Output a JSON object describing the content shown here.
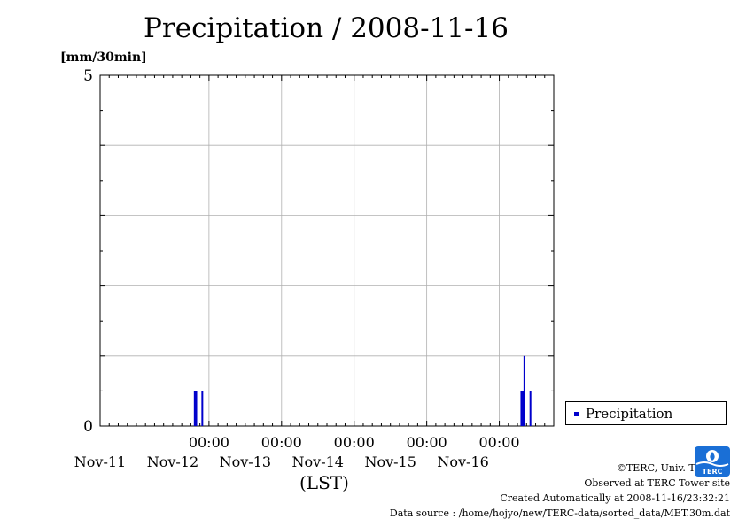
{
  "chart_data": {
    "type": "bar",
    "title": "Precipitation / 2008-11-16",
    "ylabel": "[mm/30min]",
    "xlabel": "(LST)",
    "ylim": [
      0,
      5
    ],
    "xlim": [
      "2008-11-10 12:00",
      "2008-11-16 18:00"
    ],
    "y_ticks": [
      "0",
      "5"
    ],
    "y_gridlines": [
      1,
      2,
      3,
      4
    ],
    "x_ticks": [
      {
        "time": "00:00",
        "date": "Nov-12"
      },
      {
        "time": "00:00",
        "date": "Nov-13"
      },
      {
        "time": "00:00",
        "date": "Nov-14"
      },
      {
        "time": "00:00",
        "date": "Nov-15"
      },
      {
        "time": "00:00",
        "date": "Nov-16"
      }
    ],
    "x_date_labels": [
      "Nov-11",
      "Nov-12",
      "Nov-13",
      "Nov-14",
      "Nov-15",
      "Nov-16"
    ],
    "grid": true,
    "legend_position": "right",
    "series": [
      {
        "name": "Precipitation",
        "color": "#0000cc",
        "points": [
          {
            "x": "2008-11-11 19:00",
            "y": 0.5
          },
          {
            "x": "2008-11-11 19:30",
            "y": 0.5
          },
          {
            "x": "2008-11-11 21:30",
            "y": 0.5
          },
          {
            "x": "2008-11-16 07:00",
            "y": 0.5
          },
          {
            "x": "2008-11-16 07:30",
            "y": 0.5
          },
          {
            "x": "2008-11-16 08:00",
            "y": 1.0
          },
          {
            "x": "2008-11-16 10:00",
            "y": 0.5
          }
        ]
      }
    ]
  },
  "legend": {
    "label": "Precipitation"
  },
  "credits": {
    "copyright": "©TERC, Univ. Tsukuba",
    "site": "Observed at TERC Tower site",
    "created": "Created Automatically at 2008-11-16/23:32:21",
    "source": "Data source : /home/hojyo/new/TERC-data/sorted_data/MET.30m.dat"
  },
  "logo": {
    "text": "TERC",
    "color": "#1a6fd6"
  }
}
